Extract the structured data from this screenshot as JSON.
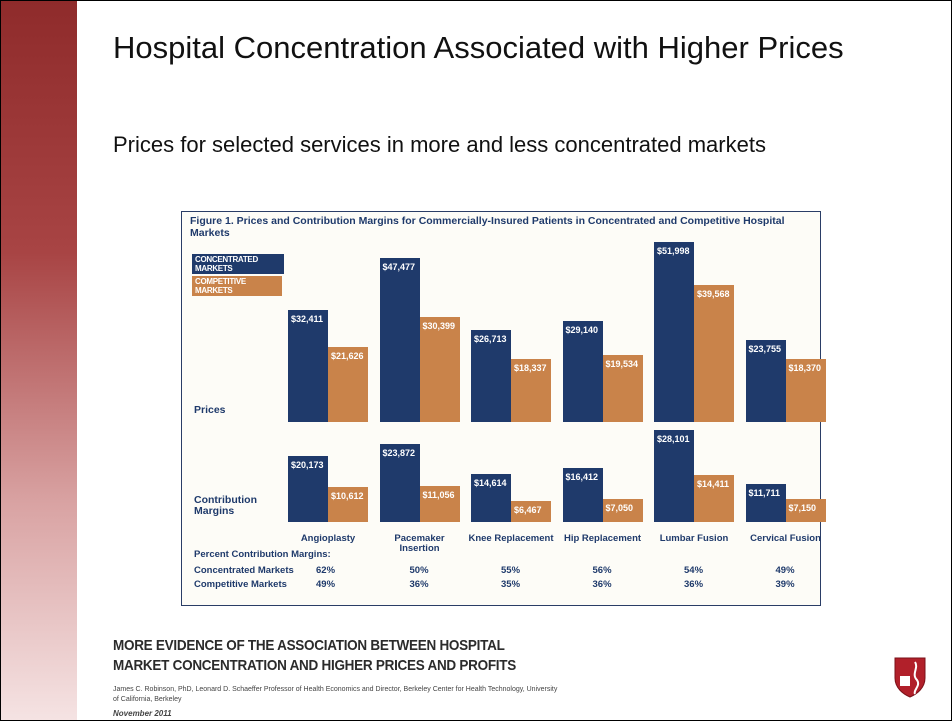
{
  "title": "Hospital Concentration Associated with Higher Prices",
  "subtitle": "Prices for selected services in more and less concentrated markets",
  "figure": {
    "title": "Figure 1. Prices and Contribution Margins for Commercially-Insured Patients in Concentrated and Competitive Hospital Markets"
  },
  "chart_data": [
    {
      "type": "bar",
      "label": "Prices",
      "ylim": [
        0,
        55000
      ],
      "series": [
        {
          "name": "CONCENTRATED MARKETS",
          "color": "#1f3a6b",
          "values": [
            32411,
            47477,
            26713,
            29140,
            51998,
            23755
          ],
          "value_labels": [
            "$32,411",
            "$47,477",
            "$26,713",
            "$29,140",
            "$51,998",
            "$23,755"
          ]
        },
        {
          "name": "COMPETITIVE MARKETS",
          "color": "#c9834a",
          "values": [
            21626,
            30399,
            18337,
            19534,
            39568,
            18370
          ],
          "value_labels": [
            "$21,626",
            "$30,399",
            "$18,337",
            "$19,534",
            "$39,568",
            "$18,370"
          ]
        }
      ]
    },
    {
      "type": "bar",
      "label": "Contribution Margins",
      "ylim": [
        0,
        30000
      ],
      "categories": [
        "Angioplasty",
        "Pacemaker Insertion",
        "Knee Replacement",
        "Hip Replacement",
        "Lumbar Fusion",
        "Cervical Fusion"
      ],
      "series": [
        {
          "color": "#1f3a6b",
          "values": [
            20173,
            23872,
            14614,
            16412,
            28101,
            11711
          ],
          "value_labels": [
            "$20,173",
            "$23,872",
            "$14,614",
            "$16,412",
            "$28,101",
            "$11,711"
          ]
        },
        {
          "color": "#c9834a",
          "values": [
            10612,
            11056,
            6467,
            7050,
            14411,
            7150
          ],
          "value_labels": [
            "$10,612",
            "$11,056",
            "$6,467",
            "$7,050",
            "$14,411",
            "$7,150"
          ]
        }
      ]
    }
  ],
  "table": {
    "title": "Percent Contribution Margins:",
    "rows": [
      {
        "name": "Concentrated Markets",
        "values": [
          62,
          50,
          55,
          56,
          54,
          49
        ],
        "value_labels": [
          "62%",
          "50%",
          "55%",
          "56%",
          "54%",
          "49%"
        ]
      },
      {
        "name": "Competitive Markets",
        "values": [
          49,
          36,
          35,
          36,
          36,
          39
        ],
        "value_labels": [
          "49%",
          "36%",
          "35%",
          "36%",
          "36%",
          "39%"
        ]
      }
    ]
  },
  "footer": {
    "headline": "MORE EVIDENCE OF THE ASSOCIATION BETWEEN HOSPITAL MARKET CONCENTRATION AND HIGHER PRICES AND PROFITS",
    "author": "James C. Robinson, PhD,",
    "affiliation": "Leonard D. Schaeffer Professor of Health Economics and Director, Berkeley Center for Health Technology, University of California, Berkeley",
    "date": "November 2011"
  }
}
